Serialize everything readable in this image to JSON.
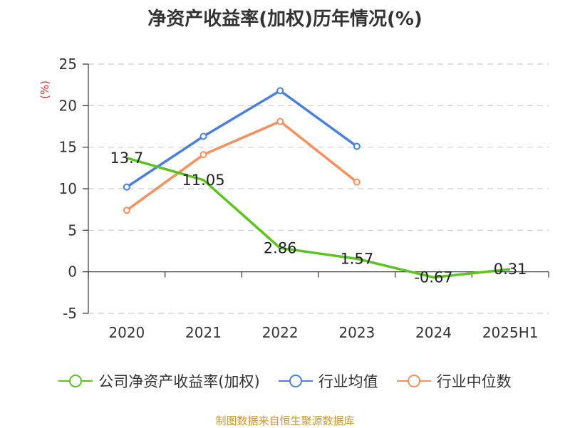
{
  "title": "净资产收益率(加权)历年情况(%)",
  "source": "制图数据来自恒生聚源数据库",
  "colors": {
    "company": "#5cc31f",
    "industry_avg": "#4a7fdc",
    "industry_median": "#f4915e",
    "axis": "#333333",
    "grid": "#cccccc",
    "unit": "#e03030"
  },
  "chart_data": {
    "type": "line",
    "title": "净资产收益率(加权)历年情况(%)",
    "ylabel": "(%)",
    "xlabel": "",
    "categories": [
      "2020",
      "2021",
      "2022",
      "2023",
      "2024",
      "2025H1"
    ],
    "ylim": [
      -5,
      25
    ],
    "yticks": [
      -5,
      0,
      5,
      10,
      15,
      20,
      25
    ],
    "grid": true,
    "legend_position": "bottom",
    "series": [
      {
        "name": "公司净资产收益率(加权)",
        "color_key": "company",
        "values": [
          13.7,
          11.05,
          2.86,
          1.57,
          -0.67,
          0.31
        ],
        "labels": [
          "13.7",
          "11.05",
          "2.86",
          "1.57",
          "-0.67",
          "0.31"
        ],
        "markers": false
      },
      {
        "name": "行业均值",
        "color_key": "industry_avg",
        "values": [
          10.2,
          16.3,
          21.8,
          15.1,
          null,
          null
        ],
        "markers": true
      },
      {
        "name": "行业中位数",
        "color_key": "industry_median",
        "values": [
          7.4,
          14.1,
          18.1,
          10.8,
          null,
          null
        ],
        "markers": true
      }
    ]
  }
}
